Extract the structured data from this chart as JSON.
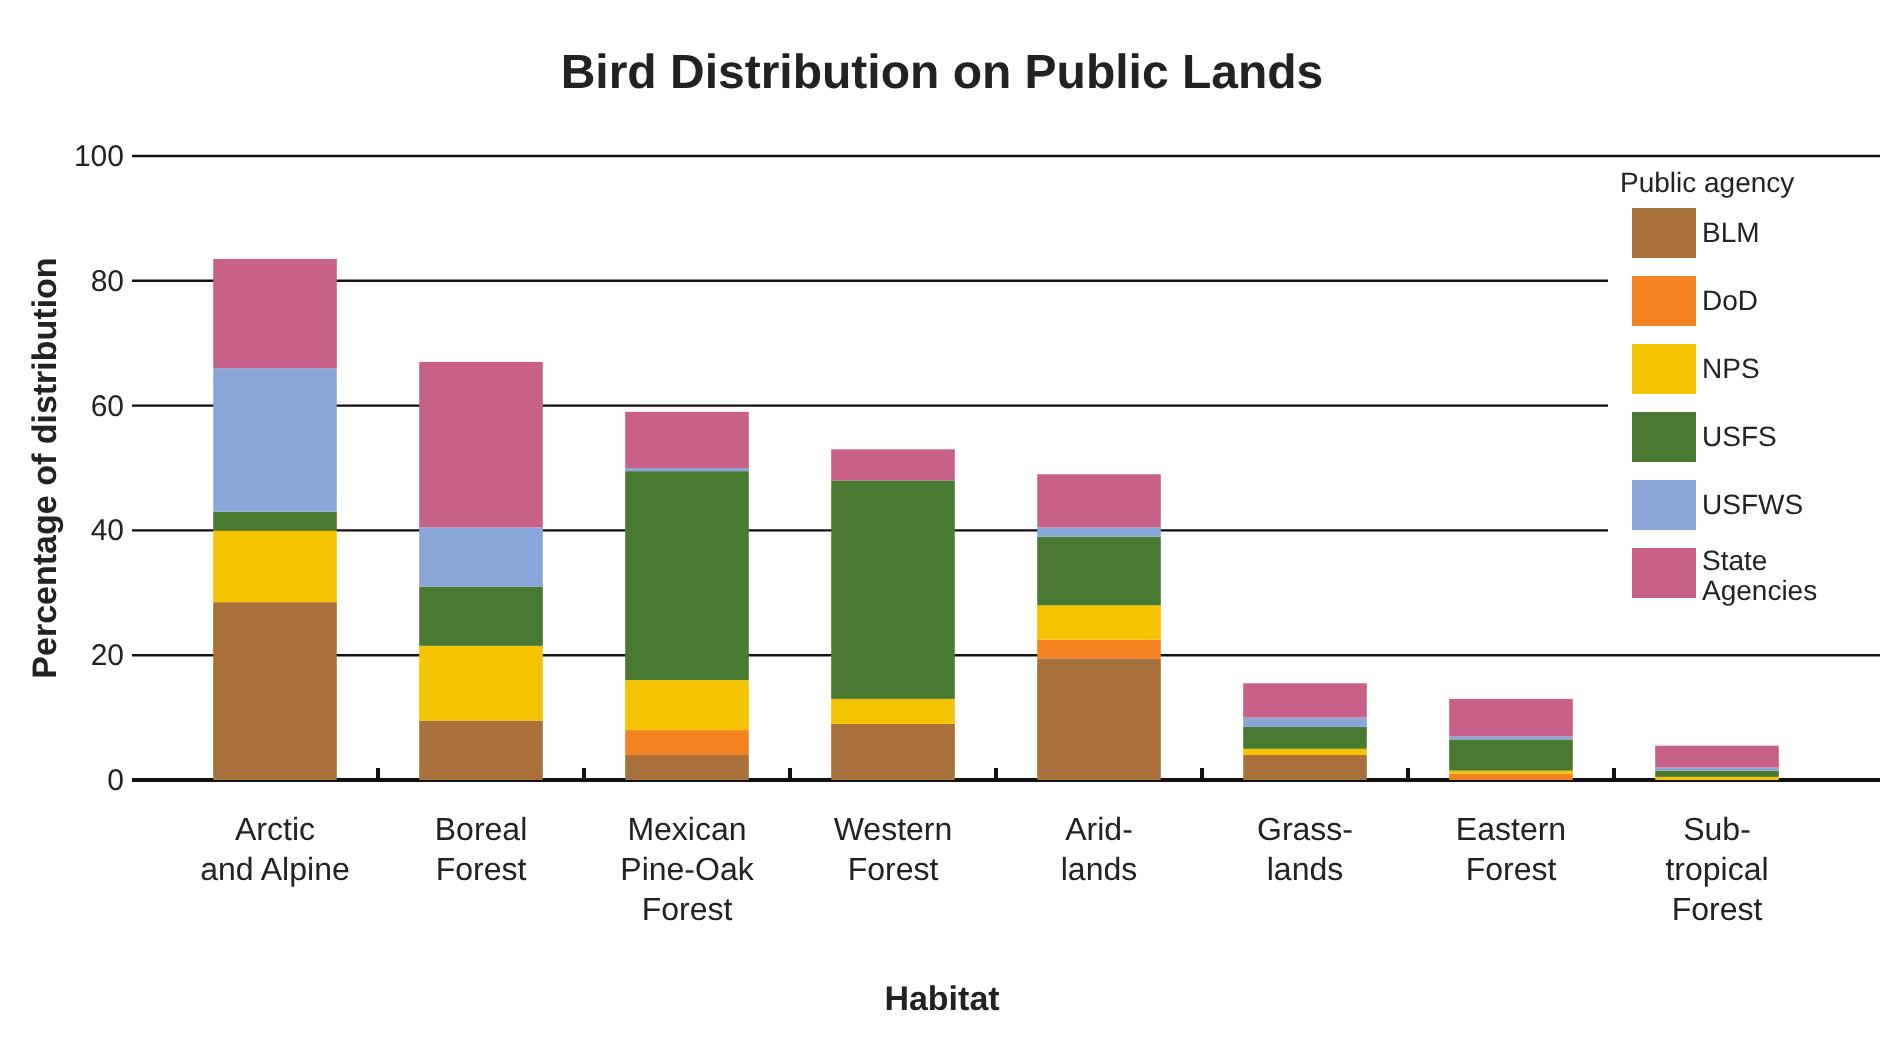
{
  "chart_data": {
    "type": "bar",
    "stacked": true,
    "title": "Bird Distribution on Public Lands",
    "xlabel": "Habitat",
    "ylabel": "Percentage of distribution",
    "legend_title": "Public agency",
    "legend": "top right",
    "grid": "y",
    "categories": [
      "Arctic\nand Alpine",
      "Boreal\nForest",
      "Mexican\nPine-Oak\nForest",
      "Western\nForest",
      "Arid-\nlands",
      "Grass-\nlands",
      "Eastern\nForest",
      "Sub-\ntropical\nForest"
    ],
    "ylim": [
      0,
      100
    ],
    "yticks": [
      0,
      20,
      40,
      60,
      80,
      100
    ],
    "series": [
      {
        "name": "BLM",
        "color": "#a8703a",
        "values": [
          28.5,
          9.5,
          4,
          9,
          19.5,
          4,
          0,
          0
        ]
      },
      {
        "name": "DoD",
        "color": "#f58220",
        "values": [
          0,
          0,
          4,
          0,
          3,
          0,
          1,
          0
        ]
      },
      {
        "name": "NPS",
        "color": "#f5c400",
        "values": [
          11.5,
          12,
          8,
          4,
          5.5,
          1,
          0.5,
          0.5
        ]
      },
      {
        "name": "USFS",
        "color": "#4a7a32",
        "values": [
          3,
          9.5,
          33.5,
          35,
          11,
          3.5,
          5,
          1
        ]
      },
      {
        "name": "USFWS",
        "color": "#8aa6d8",
        "values": [
          23,
          9.5,
          0.5,
          0,
          1.5,
          1.5,
          0.5,
          0.5
        ]
      },
      {
        "name": "State\nAgencies",
        "color": "#c9608a",
        "values": [
          17.5,
          26.5,
          9,
          5,
          8.5,
          5.5,
          6,
          3.5
        ]
      }
    ]
  }
}
